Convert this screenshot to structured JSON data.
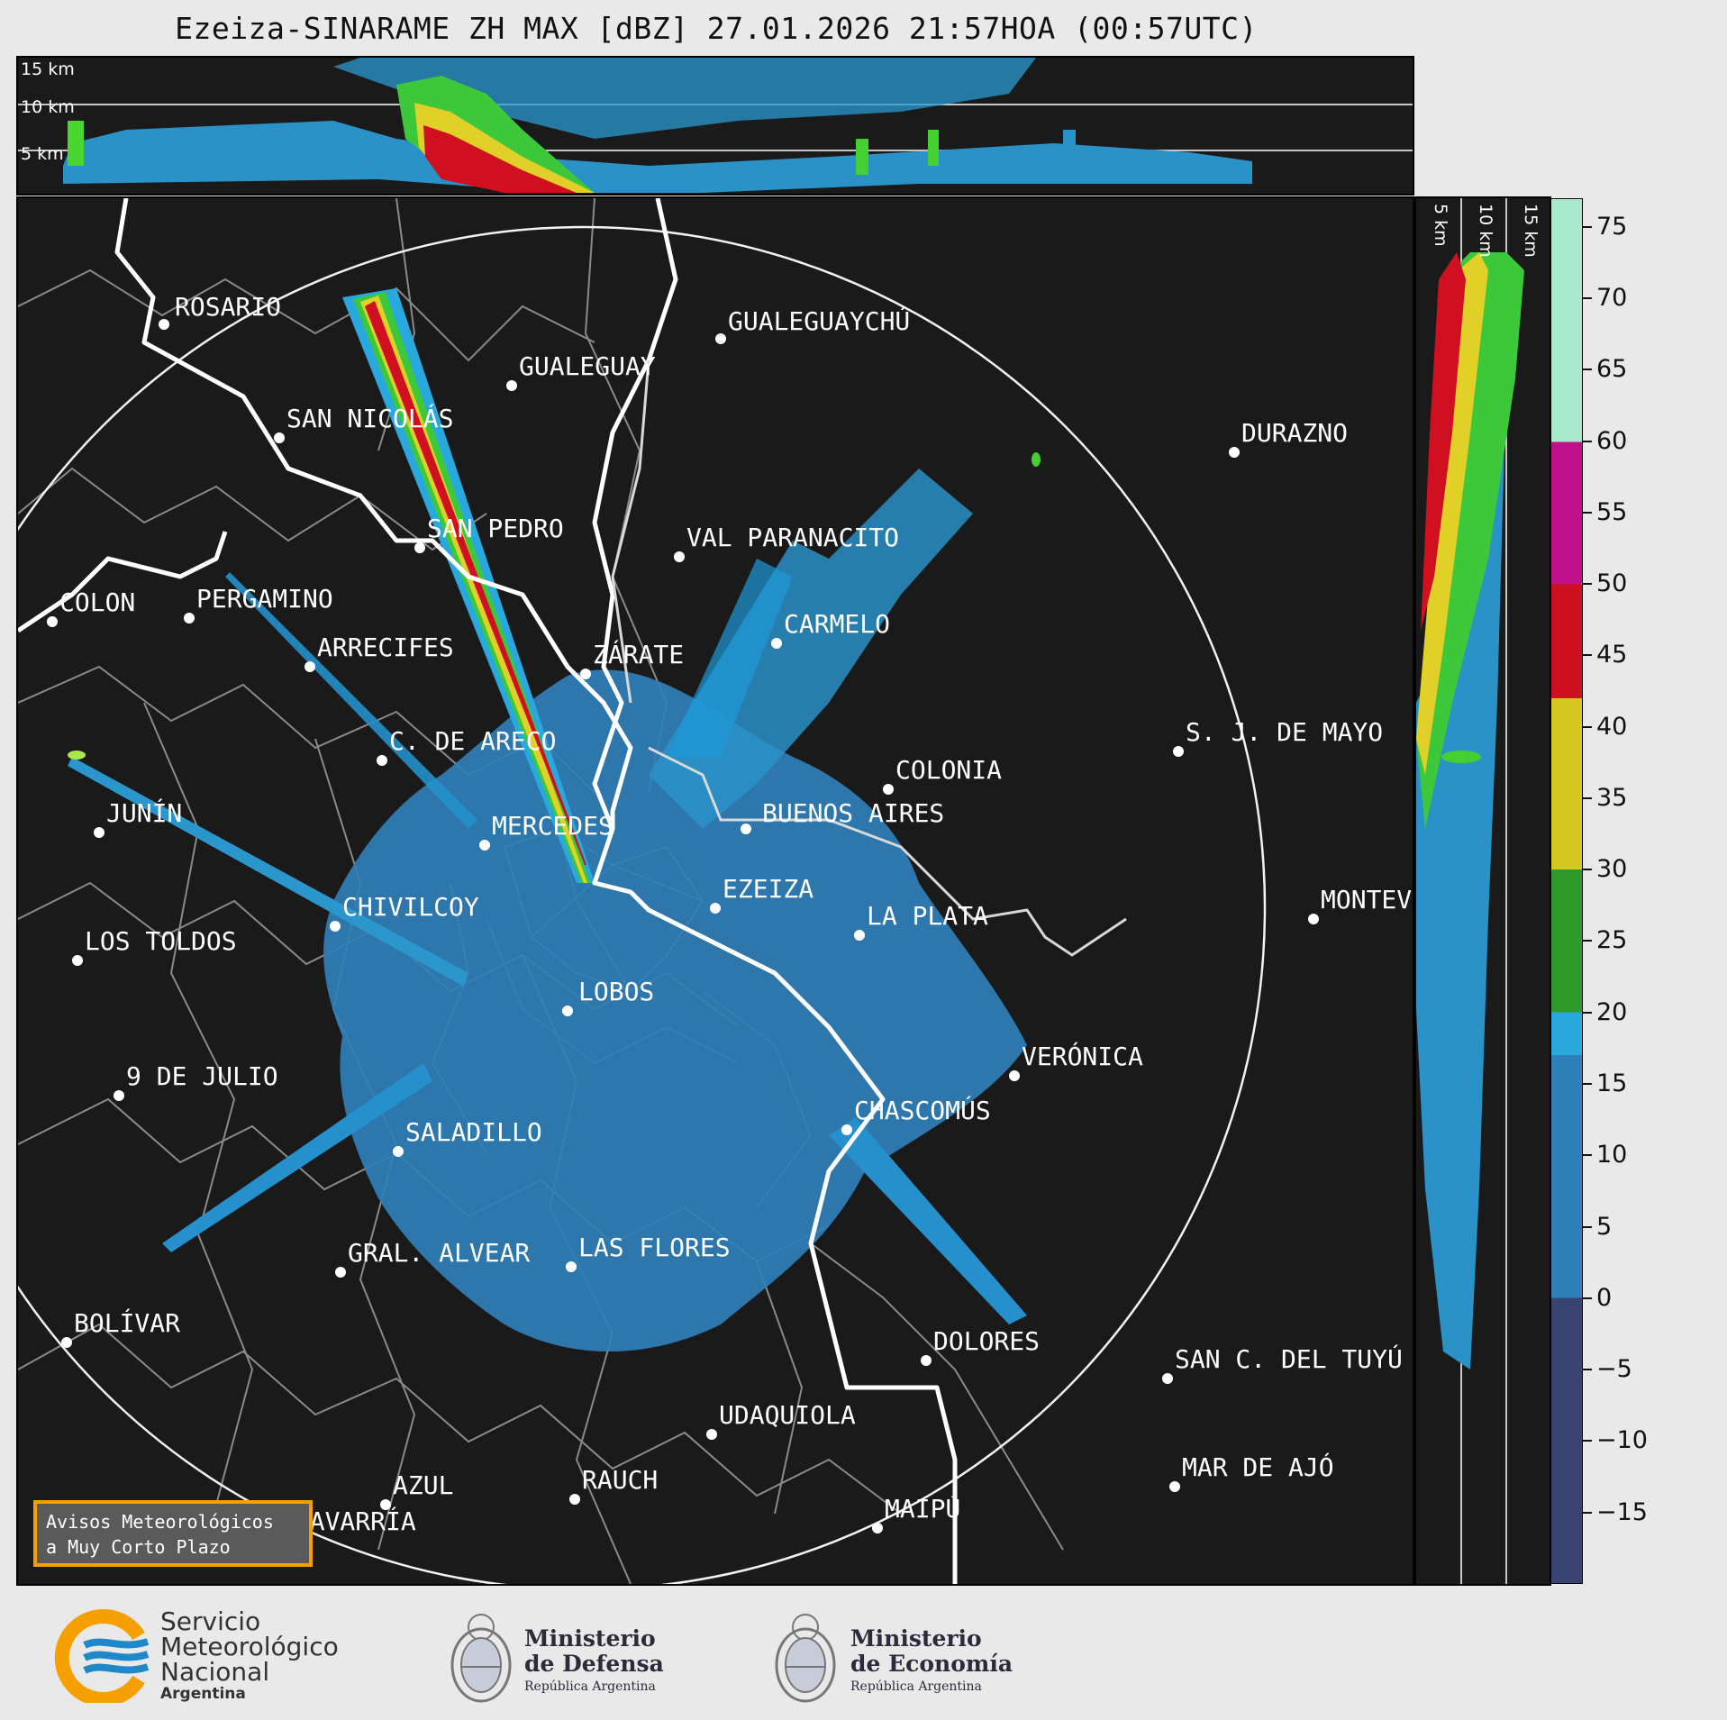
{
  "title": "Ezeiza-SINARAME ZH MAX [dBZ] 27.01.2026 21:57HOA (00:57UTC)",
  "height_labels": [
    "15 km",
    "10 km",
    "5 km"
  ],
  "colorbar": {
    "ticks": [
      "75",
      "70",
      "65",
      "60",
      "55",
      "50",
      "45",
      "40",
      "35",
      "30",
      "25",
      "20",
      "15",
      "10",
      "5",
      "0",
      "−5",
      "−10",
      "−15"
    ],
    "tick_values": [
      75,
      70,
      65,
      60,
      55,
      50,
      45,
      40,
      35,
      30,
      25,
      20,
      15,
      10,
      5,
      0,
      -5,
      -10,
      -15
    ],
    "range": [
      -20,
      77
    ],
    "stops": [
      {
        "from": -20,
        "to": 0,
        "color": "#3a4470"
      },
      {
        "from": 0,
        "to": 17,
        "color": "#2f7fb8"
      },
      {
        "from": 17,
        "to": 20,
        "color": "#29a8de"
      },
      {
        "from": 20,
        "to": 30,
        "color": "#2f9a2a"
      },
      {
        "from": 30,
        "to": 42,
        "color": "#d4c820"
      },
      {
        "from": 42,
        "to": 50,
        "color": "#cc1020"
      },
      {
        "from": 50,
        "to": 60,
        "color": "#c0108a"
      },
      {
        "from": 60,
        "to": 77,
        "color": "#a8e8cc"
      }
    ]
  },
  "cities": [
    {
      "name": "ROSARIO",
      "id": "rosario"
    },
    {
      "name": "GUALEGUAYCHÚ",
      "id": "gualeguaychu"
    },
    {
      "name": "GUALEGUAY",
      "id": "gualeguay"
    },
    {
      "name": "SAN NICOLÁS",
      "id": "san-nicolas"
    },
    {
      "name": "DURAZNO",
      "id": "durazno"
    },
    {
      "name": "SAN PEDRO",
      "id": "san-pedro"
    },
    {
      "name": "VAL PARANACITO",
      "id": "val-paranacito"
    },
    {
      "name": "COLON",
      "id": "colon"
    },
    {
      "name": "PERGAMINO",
      "id": "pergamino"
    },
    {
      "name": "CARMELO",
      "id": "carmelo"
    },
    {
      "name": "ARRECIFES",
      "id": "arrecifes"
    },
    {
      "name": "ZÁRATE",
      "id": "zarate"
    },
    {
      "name": "S. J. DE MAYO",
      "id": "sj-de-mayo"
    },
    {
      "name": "C. DE ARECO",
      "id": "c-de-areco"
    },
    {
      "name": "COLONIA",
      "id": "colonia"
    },
    {
      "name": "JUNÍN",
      "id": "junin"
    },
    {
      "name": "BUENOS AIRES",
      "id": "buenos-aires"
    },
    {
      "name": "MERCEDES",
      "id": "mercedes"
    },
    {
      "name": "EZEIZA",
      "id": "ezeiza"
    },
    {
      "name": "MONTEVIDEO",
      "id": "montevideo"
    },
    {
      "name": "CHIVILCOY",
      "id": "chivilcoy"
    },
    {
      "name": "LA PLATA",
      "id": "la-plata"
    },
    {
      "name": "LOS TOLDOS",
      "id": "los-toldos"
    },
    {
      "name": "LOBOS",
      "id": "lobos"
    },
    {
      "name": "VERÓNICA",
      "id": "veronica"
    },
    {
      "name": "9 DE JULIO",
      "id": "9-de-julio"
    },
    {
      "name": "CHASCOMÚS",
      "id": "chascomus"
    },
    {
      "name": "SALADILLO",
      "id": "saladillo"
    },
    {
      "name": "GRAL. ALVEAR",
      "id": "gral-alvear"
    },
    {
      "name": "LAS FLORES",
      "id": "las-flores"
    },
    {
      "name": "BOLÍVAR",
      "id": "bolivar"
    },
    {
      "name": "DOLORES",
      "id": "dolores"
    },
    {
      "name": "SAN C. DEL TUYÚ",
      "id": "san-c-del-tuyu"
    },
    {
      "name": "UDAQUIOLA",
      "id": "udaquiola"
    },
    {
      "name": "MAR DE AJÓ",
      "id": "mar-de-ajo"
    },
    {
      "name": "AZUL",
      "id": "azul"
    },
    {
      "name": "RAUCH",
      "id": "rauch"
    },
    {
      "name": "MAIPÚ",
      "id": "maipu"
    },
    {
      "name": "OLAVARRÍA",
      "id": "olavarria"
    }
  ],
  "warning_box": {
    "line1": "Avisos Meteorológicos",
    "line2": "a Muy Corto Plazo"
  },
  "logos": {
    "smn": {
      "line1": "Servicio",
      "line2": "Meteorológico",
      "line3": "Nacional",
      "line4": "Argentina"
    },
    "defensa": {
      "line1": "Ministerio",
      "line2": "de Defensa",
      "line3": "República Argentina"
    },
    "economia": {
      "line1": "Ministerio",
      "line2": "de Economía",
      "line3": "República Argentina"
    }
  },
  "colors": {
    "background": "#e9e9e9",
    "panel": "#1a1a1a",
    "echo_base": "#2f7fb8",
    "accent_box": "#f5a000",
    "smn_orange": "#f5a000",
    "smn_blue": "#1e88c8"
  }
}
